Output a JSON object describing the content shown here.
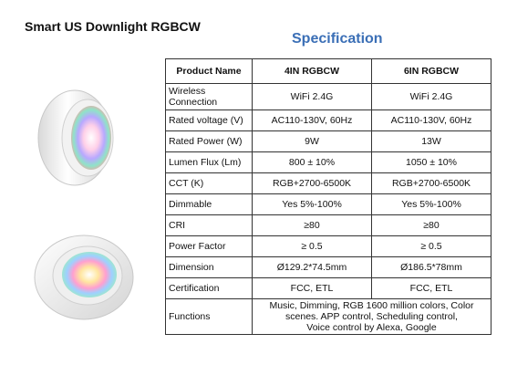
{
  "title": "Smart US Downlight RGBCW",
  "heading": "Specification",
  "table": {
    "headers": [
      "Product Name",
      "4IN RGBCW",
      "6IN RGBCW"
    ],
    "rows": [
      {
        "label": "Wireless\nConnection",
        "v4": "WiFi 2.4G",
        "v6": "WiFi 2.4G"
      },
      {
        "label": "Rated voltage  (V)",
        "v4": "AC110-130V, 60Hz",
        "v6": "AC110-130V, 60Hz"
      },
      {
        "label": "Rated Power (W)",
        "v4": "9W",
        "v6": "13W"
      },
      {
        "label": "Lumen Flux (Lm)",
        "v4": "800 ± 10%",
        "v6": "1050 ± 10%"
      },
      {
        "label": "CCT (K)",
        "v4": "RGB+2700-6500K",
        "v6": "RGB+2700-6500K"
      },
      {
        "label": "Dimmable",
        "v4": "Yes 5%-100%",
        "v6": "Yes 5%-100%"
      },
      {
        "label": "CRI",
        "v4": "≥80",
        "v6": "≥80"
      },
      {
        "label": "Power Factor",
        "v4": "≥ 0.5",
        "v6": "≥ 0.5"
      },
      {
        "label": "Dimension",
        "v4": "Ø129.2*74.5mm",
        "v6": "Ø186.5*78mm"
      },
      {
        "label": "Certification",
        "v4": "FCC, ETL",
        "v6": "FCC, ETL"
      }
    ],
    "functions": {
      "label": "Functions",
      "value": "Music, Dimming, RGB 1600 million colors, Color\nscenes. APP control, Scheduling control,\nVoice control by Alexa, Google"
    }
  }
}
